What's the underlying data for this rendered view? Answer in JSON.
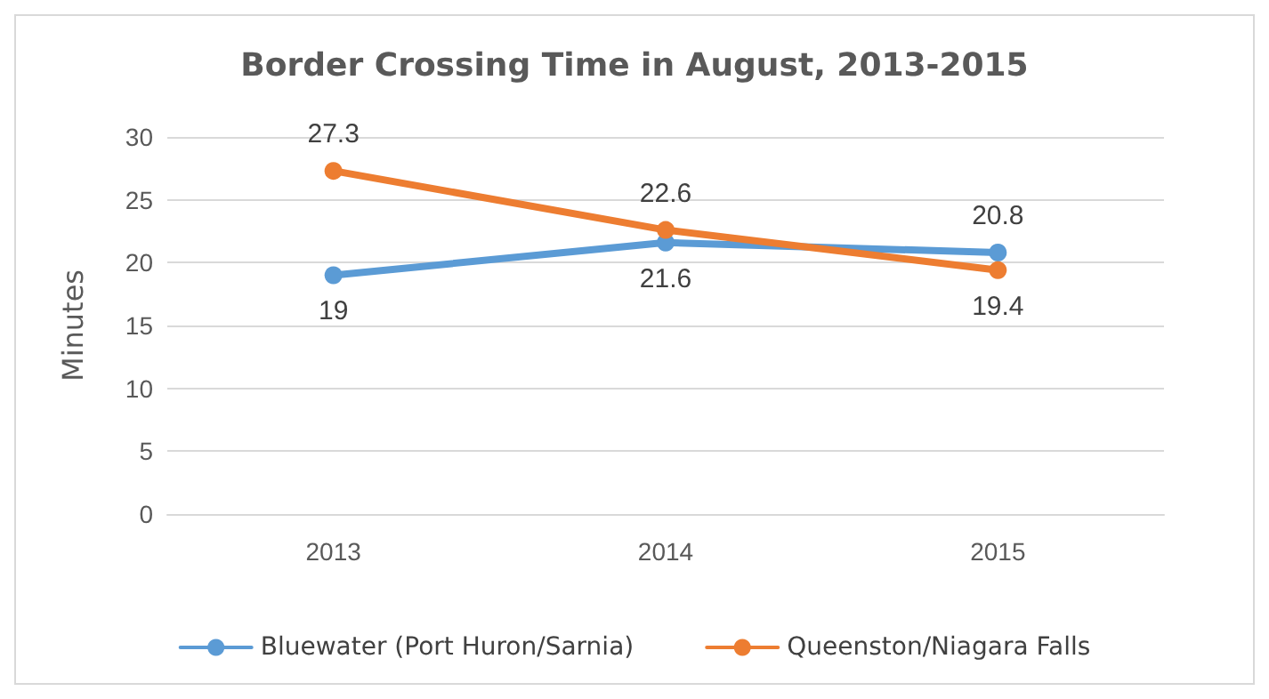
{
  "chart_data": {
    "type": "line",
    "title": "Border Crossing Time in August, 2013-2015",
    "ylabel": "Minutes",
    "categories": [
      "2013",
      "2014",
      "2015"
    ],
    "series": [
      {
        "name": "Bluewater (Port Huron/Sarnia)",
        "color": "#5b9bd5",
        "values": [
          19,
          21.6,
          20.8
        ]
      },
      {
        "name": "Queenston/Niagara Falls",
        "color": "#ed7d31",
        "values": [
          27.3,
          22.6,
          19.4
        ]
      }
    ],
    "ylim": [
      0,
      30
    ],
    "yticks": [
      0,
      5,
      10,
      15,
      20,
      25,
      30
    ],
    "grid": "y",
    "legend": "bottom",
    "marker": "circle",
    "line_style": "solid",
    "data_labels": true
  }
}
